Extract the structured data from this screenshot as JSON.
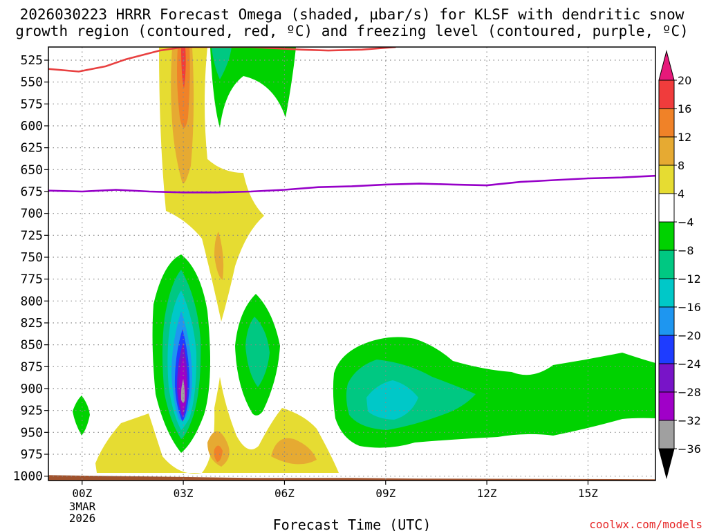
{
  "chart_data": {
    "type": "heatmap",
    "title_line1": "2026030223 HRRR Forecast Omega (shaded, µbar/s) for KLSF with dendritic snow",
    "title_line2": "growth region (contoured, red, ºC) and freezing level (contoured, purple, ºC)",
    "xlabel": "Forecast Time (UTC)",
    "credit": "coolwx.com/models",
    "x_range_hours": [
      -1,
      17
    ],
    "y_range_hPa": [
      510,
      1005
    ],
    "x_ticks": [
      {
        "hour": 0,
        "label": "00Z"
      },
      {
        "hour": 3,
        "label": "03Z"
      },
      {
        "hour": 6,
        "label": "06Z"
      },
      {
        "hour": 9,
        "label": "09Z"
      },
      {
        "hour": 12,
        "label": "12Z"
      },
      {
        "hour": 15,
        "label": "15Z"
      }
    ],
    "x_date_line1": "3MAR",
    "x_date_line2": "2026",
    "y_ticks": [
      525,
      550,
      575,
      600,
      625,
      650,
      675,
      700,
      725,
      750,
      775,
      800,
      825,
      850,
      875,
      900,
      925,
      950,
      975,
      1000
    ],
    "colorbar": {
      "labels": [
        "20",
        "16",
        "12",
        "8",
        "4",
        "−4",
        "−8",
        "−12",
        "−16",
        "−20",
        "−24",
        "−28",
        "−32",
        "−36"
      ],
      "bands": [
        {
          "range": [
            16,
            20
          ],
          "color": "#f03c3c"
        },
        {
          "range": [
            12,
            16
          ],
          "color": "#f08228"
        },
        {
          "range": [
            8,
            12
          ],
          "color": "#e6aa32"
        },
        {
          "range": [
            4,
            8
          ],
          "color": "#e6dc32"
        },
        {
          "range": [
            -4,
            4
          ],
          "color": "#ffffff"
        },
        {
          "range": [
            -8,
            -4
          ],
          "color": "#00d200"
        },
        {
          "range": [
            -12,
            -8
          ],
          "color": "#00c882"
        },
        {
          "range": [
            -16,
            -12
          ],
          "color": "#00c8c8"
        },
        {
          "range": [
            -20,
            -16
          ],
          "color": "#1e96f0"
        },
        {
          "range": [
            -24,
            -20
          ],
          "color": "#1e3cff"
        },
        {
          "range": [
            -28,
            -24
          ],
          "color": "#7814c8"
        },
        {
          "range": [
            -32,
            -28
          ],
          "color": "#a000c8"
        },
        {
          "range": [
            -36,
            -32
          ],
          "color": "#a0a0a0"
        }
      ],
      "top_arrow_color": "#e6197a",
      "bottom_arrow_color": "#000000"
    },
    "freezing_level": {
      "color": "#9600c8",
      "points": [
        [
          -1,
          674
        ],
        [
          0,
          675
        ],
        [
          1,
          673
        ],
        [
          2,
          675
        ],
        [
          3,
          676
        ],
        [
          4,
          676
        ],
        [
          5,
          675
        ],
        [
          6,
          673
        ],
        [
          7,
          670
        ],
        [
          8,
          669
        ],
        [
          9,
          667
        ],
        [
          10,
          666
        ],
        [
          11,
          667
        ],
        [
          12,
          668
        ],
        [
          13,
          664
        ],
        [
          14,
          662
        ],
        [
          15,
          660
        ],
        [
          16,
          659
        ],
        [
          17,
          657
        ]
      ]
    },
    "dgz_contour": {
      "color": "#e84040",
      "points": [
        [
          -1,
          535
        ],
        [
          -0.1,
          538
        ],
        [
          0.7,
          532
        ],
        [
          1.3,
          524
        ],
        [
          2.3,
          514
        ],
        [
          3,
          510
        ],
        [
          5,
          510
        ],
        [
          6.5,
          513
        ],
        [
          7.3,
          514
        ],
        [
          8.3,
          513
        ],
        [
          9.3,
          510
        ]
      ]
    },
    "ground": {
      "color": "#a0522d",
      "pressure_hPa": 1002
    }
  }
}
